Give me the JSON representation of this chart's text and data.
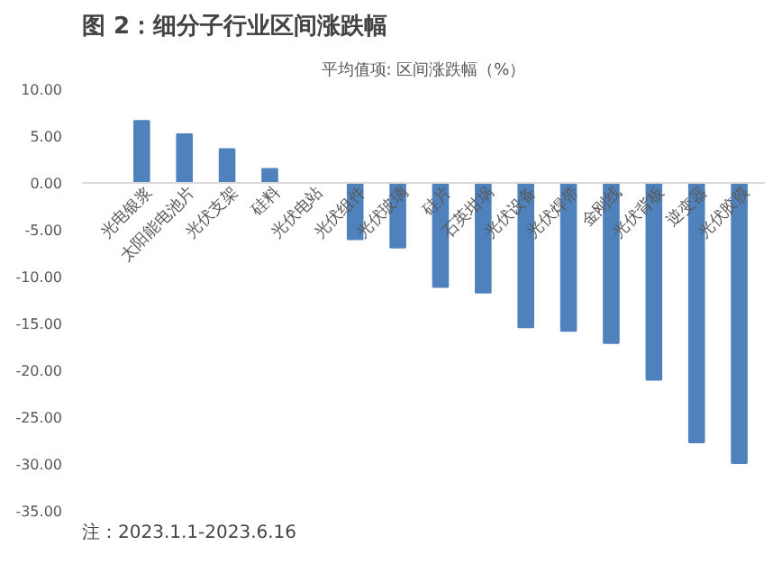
{
  "chart_data": {
    "type": "bar",
    "title": "图 2：细分子行业区间涨跌幅",
    "subtitle": "平均值项: 区间涨跌幅（%）",
    "categories": [
      "光电银浆",
      "太阳能电池片",
      "光伏支架",
      "硅料",
      "光伏电站",
      "光伏组件",
      "光伏玻璃",
      "硅片",
      "石英坩埚",
      "光伏设备",
      "光伏焊带",
      "金刚线",
      "光伏背板",
      "逆变器",
      "光伏胶膜"
    ],
    "values": [
      6.6,
      5.2,
      3.6,
      1.5,
      0,
      -6.0,
      -6.9,
      -11.1,
      -11.7,
      -15.4,
      -15.8,
      -17.1,
      -21.0,
      -27.7,
      -29.9
    ],
    "color": "#4f81bd",
    "ylim": [
      -35,
      10
    ],
    "yticks": [
      {
        "value": -35,
        "label": "-35.00"
      },
      {
        "value": -30,
        "label": "-30.00"
      },
      {
        "value": -25,
        "label": "-25.00"
      },
      {
        "value": -20,
        "label": "-20.00"
      },
      {
        "value": -15,
        "label": "-15.00"
      },
      {
        "value": -10,
        "label": "-10.00"
      },
      {
        "value": -5,
        "label": "-5.00"
      },
      {
        "value": 0,
        "label": "0.00"
      },
      {
        "value": 5,
        "label": "5.00"
      },
      {
        "value": 10,
        "label": "10.00"
      }
    ],
    "grid": false,
    "annotations": [
      "注：2023.1.1-2023.6.16"
    ]
  }
}
